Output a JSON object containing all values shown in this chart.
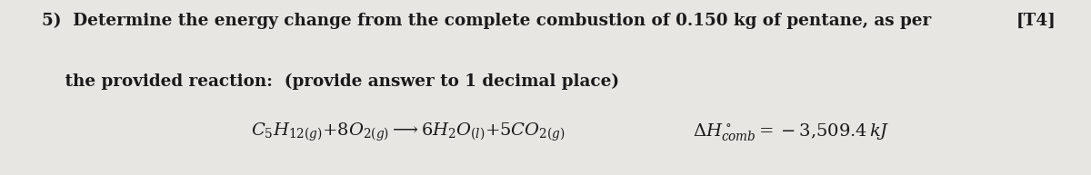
{
  "background_color": "#e8e6e2",
  "fig_width": 12.0,
  "fig_height": 1.93,
  "dpi": 100,
  "line1": "5)  Determine the energy change from the complete combustion of 0.150 kg of pentane, as per",
  "line2": "    the provided reaction:  (provide answer to 1 decimal place)",
  "tag": "[T4]",
  "fontsize_main": 13.2,
  "fontsize_reaction": 14.0,
  "text_color": "#1a1a1a"
}
